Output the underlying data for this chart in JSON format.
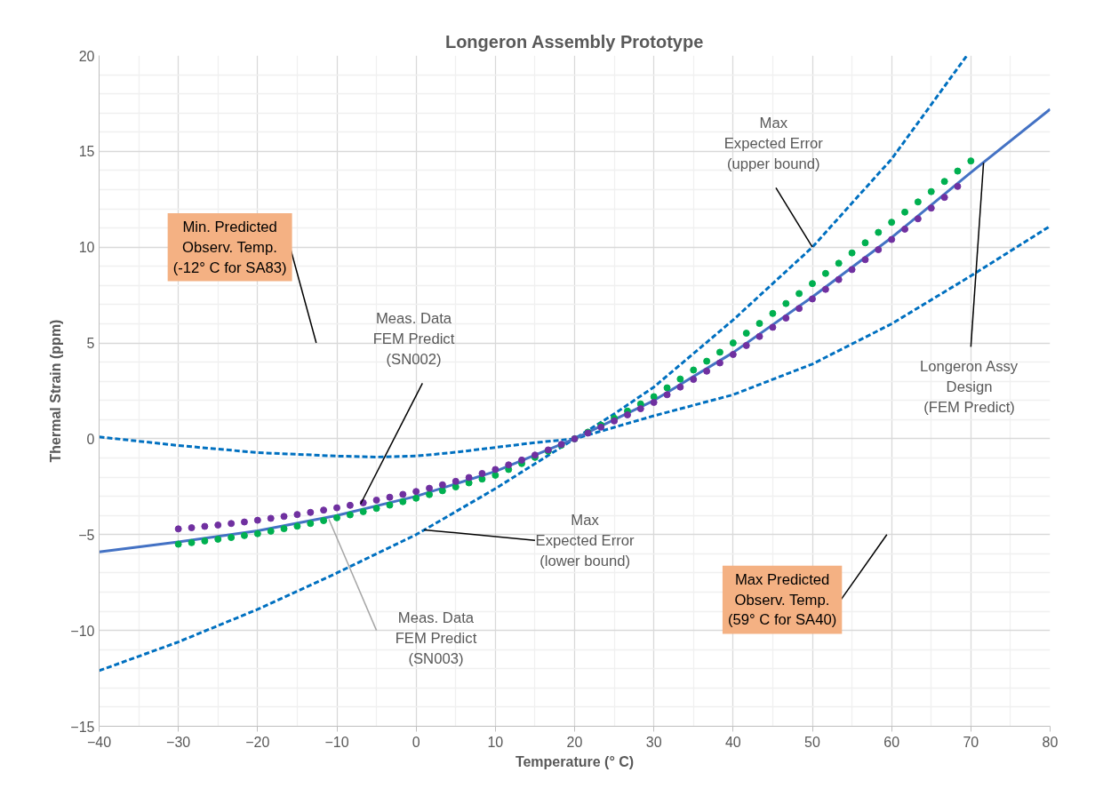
{
  "chart_data": {
    "type": "line",
    "title": "Longeron Assembly Prototype",
    "xlabel": "Temperature (° C)",
    "ylabel": "Thermal Strain (ppm)",
    "xlim": [
      -40,
      80
    ],
    "xticks": [
      -40,
      -30,
      -20,
      -10,
      0,
      10,
      20,
      30,
      40,
      50,
      60,
      70,
      80
    ],
    "ylim": [
      -15,
      20
    ],
    "yticks": [
      -15,
      -10,
      -5,
      0,
      5,
      10,
      15,
      20
    ],
    "grid": true,
    "series": [
      {
        "line_style": "dashed",
        "color": "#0070c0",
        "x": [
          -40,
          -30,
          -20,
          -10,
          -5,
          0,
          5,
          10,
          15,
          20,
          25,
          30,
          40,
          50,
          60,
          69.5
        ],
        "values": [
          0.1,
          -0.35,
          -0.72,
          -0.9,
          -0.95,
          -0.9,
          -0.7,
          -0.45,
          -0.2,
          0,
          1.3,
          2.7,
          6.2,
          10.0,
          14.6,
          20
        ]
      },
      {
        "line_style": "dashed",
        "color": "#0070c0",
        "x": [
          -40,
          -30,
          -20,
          -10,
          0,
          10,
          20,
          30,
          40,
          50,
          60,
          70,
          80
        ],
        "values": [
          -12.1,
          -10.6,
          -8.9,
          -7.0,
          -5.0,
          -2.6,
          0,
          1.2,
          2.3,
          3.9,
          6.0,
          8.5,
          11.1
        ]
      },
      {
        "line_style": "solid",
        "color": "#4472c4",
        "x": [
          -40,
          -30,
          -20,
          -10,
          0,
          10,
          20,
          30,
          40,
          50,
          60,
          70,
          80
        ],
        "values": [
          -5.9,
          -5.38,
          -4.8,
          -4.0,
          -3.0,
          -1.7,
          0,
          2.0,
          4.5,
          7.4,
          10.5,
          13.9,
          17.2
        ]
      },
      {
        "type": "scatter",
        "marker": "circle",
        "color": "#00b050",
        "x": [
          -30,
          -28.33,
          -26.67,
          -25,
          -23.33,
          -21.67,
          -20,
          -18.33,
          -16.67,
          -15,
          -13.33,
          -11.67,
          -10,
          -8.33,
          -6.67,
          -5,
          -3.33,
          -1.67,
          0,
          1.67,
          3.33,
          5,
          6.67,
          8.33,
          10,
          11.67,
          13.33,
          15,
          16.67,
          18.33,
          20,
          21.67,
          23.33,
          25,
          26.67,
          28.33,
          30,
          31.67,
          33.33,
          35,
          36.67,
          38.33,
          40,
          41.67,
          43.33,
          45,
          46.67,
          48.33,
          50,
          51.67,
          53.33,
          55,
          56.67,
          58.33,
          60,
          61.67,
          63.33,
          65,
          66.67,
          68.33,
          70
        ],
        "values": [
          -5.5,
          -5.42,
          -5.33,
          -5.24,
          -5.15,
          -5.05,
          -4.95,
          -4.82,
          -4.69,
          -4.56,
          -4.42,
          -4.27,
          -4.12,
          -3.97,
          -3.8,
          -3.63,
          -3.46,
          -3.28,
          -3.1,
          -2.91,
          -2.71,
          -2.51,
          -2.3,
          -2.1,
          -1.9,
          -1.6,
          -1.29,
          -0.97,
          -0.65,
          -0.33,
          0,
          0.35,
          0.71,
          1.08,
          1.45,
          1.82,
          2.2,
          2.66,
          3.12,
          3.59,
          4.05,
          4.52,
          5.0,
          5.51,
          6.02,
          6.54,
          7.06,
          7.58,
          8.1,
          8.63,
          9.16,
          9.7,
          10.23,
          10.77,
          11.3,
          11.83,
          12.36,
          12.9,
          13.43,
          13.97,
          14.5
        ]
      },
      {
        "type": "scatter",
        "marker": "circle",
        "color": "#7030a0",
        "x": [
          -30,
          -28.33,
          -26.67,
          -25,
          -23.33,
          -21.67,
          -20,
          -18.33,
          -16.67,
          -15,
          -13.33,
          -11.67,
          -10,
          -8.33,
          -6.67,
          -5,
          -3.33,
          -1.67,
          0,
          1.67,
          3.33,
          5,
          6.67,
          8.33,
          10,
          11.67,
          13.33,
          15,
          16.67,
          18.33,
          20,
          21.67,
          23.33,
          25,
          26.67,
          28.33,
          30,
          31.67,
          33.33,
          35,
          36.67,
          38.33,
          40,
          41.67,
          43.33,
          45,
          46.67,
          48.33,
          50,
          51.67,
          53.33,
          55,
          56.67,
          58.33,
          60,
          61.67,
          63.33,
          65,
          66.67,
          68.33
        ],
        "values": [
          -4.7,
          -4.64,
          -4.57,
          -4.5,
          -4.42,
          -4.34,
          -4.25,
          -4.15,
          -4.05,
          -3.95,
          -3.84,
          -3.72,
          -3.6,
          -3.47,
          -3.34,
          -3.2,
          -3.05,
          -2.9,
          -2.75,
          -2.58,
          -2.4,
          -2.22,
          -2.02,
          -1.81,
          -1.6,
          -1.36,
          -1.11,
          -0.85,
          -0.58,
          -0.29,
          0,
          0.3,
          0.61,
          0.93,
          1.25,
          1.57,
          1.9,
          2.3,
          2.7,
          3.1,
          3.53,
          3.96,
          4.4,
          4.87,
          5.34,
          5.82,
          6.3,
          6.8,
          7.3,
          7.8,
          8.31,
          8.83,
          9.35,
          9.87,
          10.4,
          10.94,
          11.48,
          12.04,
          12.6,
          13.17
        ]
      }
    ],
    "annotations": [
      {
        "text": "Max\nExpected Error\n(upper bound)",
        "x": 50,
        "y": 10
      },
      {
        "text": "Longeron Assy\nDesign\n(FEM Predict)",
        "x": 71.6,
        "y": 14.4
      },
      {
        "text": "Meas. Data\nFEM Predict\n(SN002)",
        "x": -7,
        "y": -3.4
      },
      {
        "text": "Meas. Data\nFEM Predict\n(SN003)",
        "x": -11,
        "y": -4.2
      },
      {
        "text": "Max\nExpected Error\n(lower bound)",
        "x": 1,
        "y": -4.75
      },
      "Min. Predicted\nObserv. Temp.\n(-12° C for SA83)",
      "Max Predicted\nObserv. Temp.\n(59° C for SA40)"
    ]
  }
}
